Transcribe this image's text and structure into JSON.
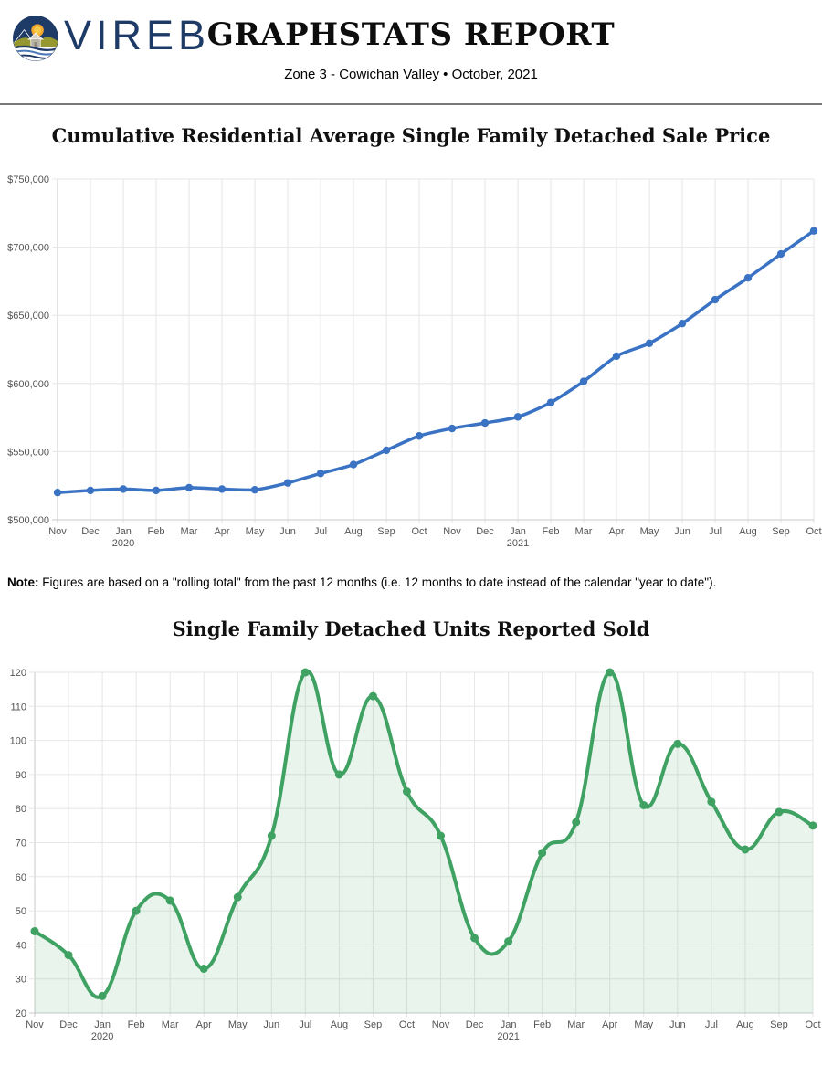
{
  "header": {
    "brand": "VIREB",
    "title": "GRAPHSTATS REPORT",
    "subtitle": "Zone 3 - Cowichan Valley  •  October, 2021",
    "logo_colors": {
      "navy": "#1e3a66",
      "sun": "#f3a72e",
      "hill_olive": "#97972f",
      "wave_blue": "#4d79b8"
    }
  },
  "note": {
    "label": "Note:",
    "text": " Figures are based on a \"rolling total\" from the past 12 months (i.e. 12 months to date instead of the calendar \"year to date\")."
  },
  "chart_data": [
    {
      "type": "line",
      "title": "Cumulative Residential Average Single Family Detached Sale Price",
      "categories": [
        "Nov",
        "Dec",
        "Jan",
        "Feb",
        "Mar",
        "Apr",
        "May",
        "Jun",
        "Jul",
        "Aug",
        "Sep",
        "Oct",
        "Nov",
        "Dec",
        "Jan",
        "Feb",
        "Mar",
        "Apr",
        "May",
        "Jun",
        "Jul",
        "Aug",
        "Sep",
        "Oct"
      ],
      "year_labels": [
        {
          "index": 2,
          "text": "2020"
        },
        {
          "index": 14,
          "text": "2021"
        }
      ],
      "values": [
        520000,
        521500,
        522500,
        521500,
        523500,
        522500,
        522000,
        527000,
        534000,
        540500,
        551000,
        561500,
        567000,
        571000,
        575500,
        586000,
        601500,
        620000,
        629500,
        644000,
        661500,
        677500,
        695000,
        712000
      ],
      "xlabel": "",
      "ylabel": "",
      "ylim": [
        500000,
        750000
      ],
      "ytick_step": 50000,
      "ytick_format": "currency",
      "grid": true,
      "legend": "none",
      "line_color": "#3a72c4",
      "point_color": "#3a72c4",
      "fill": false
    },
    {
      "type": "area",
      "title": "Single Family Detached Units Reported Sold",
      "categories": [
        "Nov",
        "Dec",
        "Jan",
        "Feb",
        "Mar",
        "Apr",
        "May",
        "Jun",
        "Jul",
        "Aug",
        "Sep",
        "Oct",
        "Nov",
        "Dec",
        "Jan",
        "Feb",
        "Mar",
        "Apr",
        "May",
        "Jun",
        "Jul",
        "Aug",
        "Sep",
        "Oct"
      ],
      "year_labels": [
        {
          "index": 2,
          "text": "2020"
        },
        {
          "index": 14,
          "text": "2021"
        }
      ],
      "values": [
        44,
        37,
        25,
        50,
        53,
        33,
        54,
        72,
        120,
        90,
        113,
        85,
        72,
        42,
        41,
        67,
        76,
        120,
        81,
        99,
        82,
        68,
        79,
        75
      ],
      "xlabel": "",
      "ylabel": "",
      "ylim": [
        20,
        120
      ],
      "ytick_step": 10,
      "ytick_format": "plain",
      "grid": true,
      "legend": "none",
      "line_color": "#3fa263",
      "point_color": "#3fa263",
      "fill": true,
      "fill_color": "rgba(63,162,99,0.12)"
    }
  ]
}
